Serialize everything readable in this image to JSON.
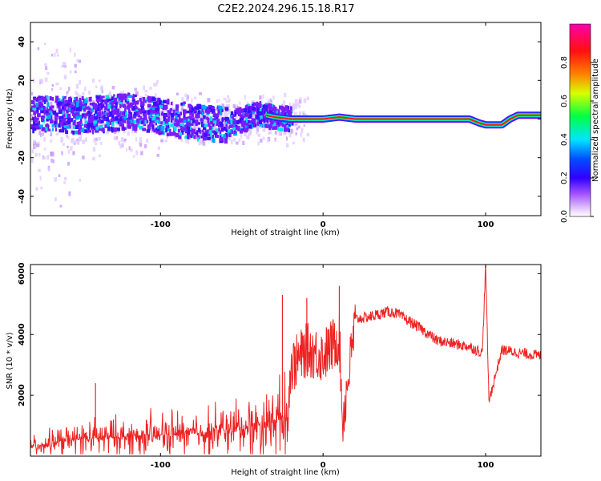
{
  "title": "C2E2.2024.296.15.18.R17",
  "chart_data": [
    {
      "type": "heatmap",
      "name": "spectrogram",
      "xlabel": "Height of straight line (km)",
      "ylabel": "Frequency (Hz)",
      "xlim": [
        -180,
        134
      ],
      "ylim": [
        -50,
        50
      ],
      "xticks": [
        -100,
        0,
        100
      ],
      "yticks": [
        -40,
        -20,
        0,
        20,
        40
      ],
      "colorbar": {
        "label": "Normalized spectral amplitude",
        "range": [
          0,
          1
        ],
        "ticks": [
          "0.0",
          "0.2",
          "0.4",
          "0.6",
          "0.8"
        ],
        "colormap": [
          "#ffffff",
          "#e6c8ff",
          "#7a00ff",
          "#0000ff",
          "#00e5ff",
          "#00ff44",
          "#ffff00",
          "#ff8000",
          "#ff0000",
          "#ff00aa"
        ]
      },
      "ridge": {
        "x": [
          -180,
          -150,
          -120,
          -90,
          -60,
          -40,
          -30,
          -20,
          0,
          10,
          20,
          90,
          96,
          100,
          110,
          115,
          120,
          134
        ],
        "y": [
          3,
          2,
          4,
          0,
          -3,
          3,
          1,
          0,
          0,
          1,
          0,
          0,
          -2,
          -3,
          -3,
          0,
          2,
          2
        ]
      },
      "noise_extent_x": [
        -180,
        -20
      ],
      "coherent_start_x": -20
    },
    {
      "type": "line",
      "name": "snr",
      "xlabel": "Height of straight line (km)",
      "ylabel": "SNR (10 * v/v)",
      "xlim": [
        -180,
        134
      ],
      "ylim": [
        0,
        6300
      ],
      "xticks": [
        -100,
        0,
        100
      ],
      "yticks": [
        2000,
        4000,
        6000
      ],
      "color": "#ee2222",
      "series": [
        {
          "x": [
            -180,
            -160,
            -140,
            -120,
            -100,
            -80,
            -60,
            -40,
            -30,
            -22,
            -20,
            -10,
            0,
            10,
            12,
            20,
            30,
            40,
            45,
            60,
            70,
            80,
            90,
            98,
            100,
            102,
            110,
            120,
            134
          ],
          "y": [
            300,
            500,
            600,
            650,
            700,
            750,
            850,
            1000,
            1200,
            1300,
            2900,
            3500,
            3300,
            3900,
            1100,
            4500,
            4600,
            4750,
            4700,
            4200,
            3800,
            3700,
            3600,
            3400,
            6300,
            1800,
            3500,
            3400,
            3300
          ]
        }
      ],
      "spikes": [
        {
          "x": -25,
          "y": 5300
        },
        {
          "x": -10,
          "y": 5200
        },
        {
          "x": 10,
          "y": 5600
        },
        {
          "x": 100,
          "y": 6300
        },
        {
          "x": -140,
          "y": 2400
        }
      ]
    }
  ]
}
